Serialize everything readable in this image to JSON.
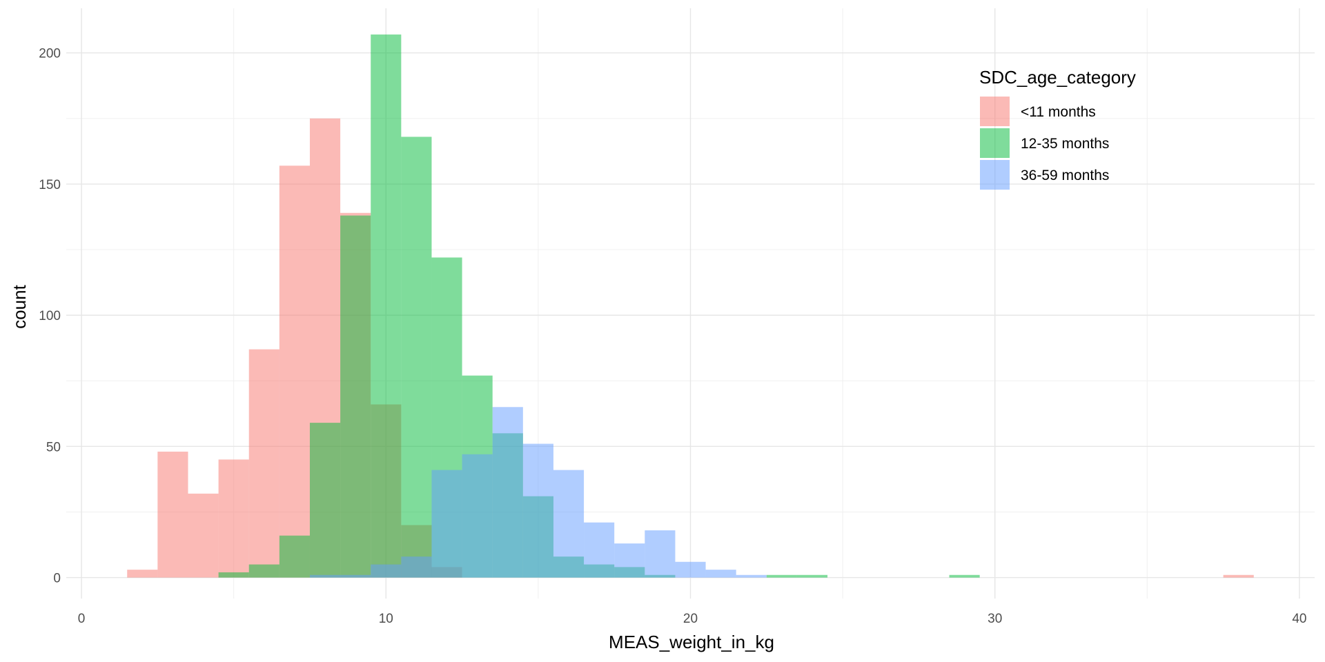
{
  "chart_data": {
    "type": "bar",
    "subtype": "histogram-overlay",
    "xlabel": "MEAS_weight_in_kg",
    "ylabel": "count",
    "xlim": [
      -0.5,
      40.5
    ],
    "ylim": [
      -8,
      217
    ],
    "x_ticks": [
      0,
      10,
      20,
      30,
      40
    ],
    "y_ticks": [
      0,
      50,
      100,
      150,
      200
    ],
    "bin_width": 1,
    "bin_starts": [
      1.5,
      2.5,
      3.5,
      4.5,
      5.5,
      6.5,
      7.5,
      8.5,
      9.5,
      10.5,
      11.5,
      12.5,
      13.5,
      14.5,
      15.5,
      16.5,
      17.5,
      18.5,
      19.5,
      20.5,
      21.5,
      22.5,
      23.5,
      24.5,
      25.5,
      26.5,
      27.5,
      28.5,
      29.5,
      30.5,
      31.5,
      32.5,
      33.5,
      34.5,
      35.5,
      36.5,
      37.5
    ],
    "grid": true,
    "opacity": 0.5,
    "legend": {
      "title": "SDC_age_category",
      "position": "top-right"
    },
    "series": [
      {
        "name": "<11 months",
        "color": "#F8766D",
        "values": [
          3,
          48,
          32,
          45,
          87,
          157,
          175,
          139,
          66,
          20,
          4,
          0,
          0,
          0,
          0,
          0,
          0,
          0,
          0,
          0,
          0,
          0,
          0,
          0,
          0,
          0,
          0,
          0,
          0,
          0,
          0,
          0,
          0,
          0,
          0,
          0,
          1
        ]
      },
      {
        "name": "12-35 months",
        "color": "#00BA38",
        "values": [
          0,
          0,
          0,
          2,
          5,
          16,
          59,
          138,
          207,
          168,
          122,
          77,
          55,
          31,
          8,
          5,
          4,
          1,
          0,
          0,
          0,
          1,
          1,
          0,
          0,
          0,
          0,
          1,
          0,
          0,
          0,
          0,
          0,
          0,
          0,
          0,
          0
        ]
      },
      {
        "name": "36-59 months",
        "color": "#619CFF",
        "values": [
          0,
          0,
          0,
          0,
          0,
          0,
          1,
          1,
          5,
          8,
          41,
          47,
          65,
          51,
          41,
          21,
          13,
          18,
          6,
          3,
          1,
          0,
          0,
          0,
          0,
          0,
          0,
          0,
          0,
          0,
          0,
          0,
          0,
          0,
          0,
          0,
          0
        ]
      }
    ]
  }
}
